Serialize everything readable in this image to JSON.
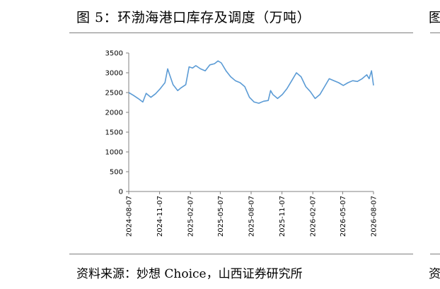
{
  "figure": {
    "title": "图 5：环渤海港口库存及调度（万吨）",
    "source": "资料来源：妙想 Choice，山西证券研究所",
    "edge_title_fragment": "图",
    "edge_source_fragment": "资"
  },
  "chart_data": {
    "type": "line",
    "title": "",
    "xlabel": "",
    "ylabel": "",
    "ylim": [
      0,
      3500
    ],
    "yticks": [
      0,
      500,
      1000,
      1500,
      2000,
      2500,
      3000,
      3500
    ],
    "xlim": [
      "2024-08-07",
      "2026-08-07"
    ],
    "xticks": [
      "2024-08-07",
      "2024-11-07",
      "2025-02-07",
      "2025-05-07",
      "2025-08-07",
      "2025-11-07",
      "2026-02-07",
      "2026-05-07",
      "2026-08-07"
    ],
    "grid": false,
    "legend": "none",
    "series": [
      {
        "name": "",
        "color": "#5b9bd5",
        "x": [
          "2024-08-07",
          "2024-08-21",
          "2024-09-04",
          "2024-09-18",
          "2024-09-28",
          "2024-10-12",
          "2024-10-26",
          "2024-11-09",
          "2024-11-23",
          "2024-12-01",
          "2024-12-07",
          "2024-12-17",
          "2024-12-31",
          "2025-01-10",
          "2025-01-24",
          "2025-02-03",
          "2025-02-13",
          "2025-02-23",
          "2025-03-09",
          "2025-03-23",
          "2025-04-06",
          "2025-04-20",
          "2025-04-30",
          "2025-05-10",
          "2025-05-24",
          "2025-06-07",
          "2025-06-21",
          "2025-07-05",
          "2025-07-19",
          "2025-08-02",
          "2025-08-16",
          "2025-08-30",
          "2025-09-13",
          "2025-09-27",
          "2025-10-04",
          "2025-10-11",
          "2025-10-25",
          "2025-11-08",
          "2025-11-22",
          "2025-12-06",
          "2025-12-20",
          "2026-01-03",
          "2026-01-17",
          "2026-01-31",
          "2026-02-14",
          "2026-02-28",
          "2026-03-14",
          "2026-03-28",
          "2026-04-11",
          "2026-04-25",
          "2026-05-09",
          "2026-05-23",
          "2026-06-06",
          "2026-06-20",
          "2026-07-04",
          "2026-07-18",
          "2026-07-25",
          "2026-08-01",
          "2026-08-07"
        ],
        "values": [
          2500,
          2430,
          2350,
          2260,
          2480,
          2380,
          2470,
          2600,
          2750,
          3100,
          2950,
          2700,
          2550,
          2620,
          2700,
          3150,
          3120,
          3180,
          3100,
          3050,
          3200,
          3230,
          3300,
          3250,
          3050,
          2900,
          2800,
          2750,
          2650,
          2380,
          2260,
          2230,
          2280,
          2300,
          2550,
          2450,
          2350,
          2450,
          2600,
          2800,
          3000,
          2900,
          2650,
          2520,
          2350,
          2450,
          2650,
          2850,
          2800,
          2750,
          2680,
          2750,
          2800,
          2780,
          2850,
          2950,
          2850,
          3050,
          2680
        ]
      }
    ]
  }
}
